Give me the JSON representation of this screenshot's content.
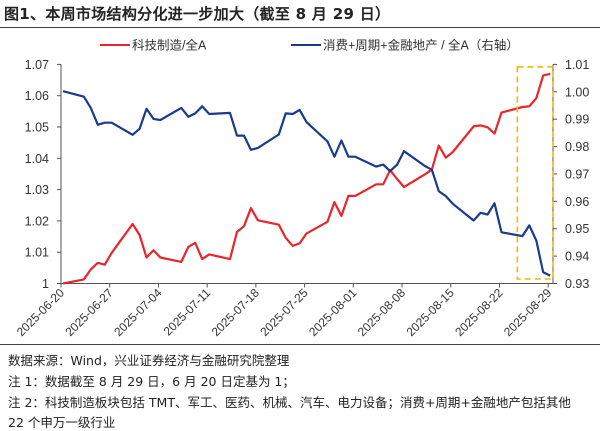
{
  "title": "图1、本周市场结构分化进一步加大（截至 8 月 29 日）",
  "footer": {
    "source": "数据来源：Wind，兴业证券经济与金融研究院整理",
    "note1": "注 1：数据截至 8 月 29 日，6 月 20 日定基为 1；",
    "note2_line1": "注 2：科技制造板块包括 TMT、军工、医药、机械、汽车、电力设备；消费+周期+金融地产包括其他",
    "note2_line2": "22 个申万一级行业"
  },
  "chart_data": {
    "type": "line",
    "title": "图1、本周市场结构分化进一步加大（截至 8 月 29 日）",
    "legend_position": "top",
    "grid": false,
    "left_axis": {
      "ylim": [
        1.0,
        1.07
      ],
      "ticks": [
        "1.07",
        "1.06",
        "1.05",
        "1.04",
        "1.03",
        "1.02",
        "1.01",
        "1"
      ]
    },
    "right_axis": {
      "ylim": [
        0.93,
        1.01
      ],
      "ticks": [
        "1.01",
        "1.00",
        "0.99",
        "0.98",
        "0.97",
        "0.96",
        "0.95",
        "0.94",
        "0.93"
      ]
    },
    "x_ticks": [
      "2025-06-20",
      "2025-06-27",
      "2025-07-04",
      "2025-07-11",
      "2025-07-18",
      "2025-07-25",
      "2025-08-01",
      "2025-08-08",
      "2025-08-15",
      "2025-08-22",
      "2025-08-29"
    ],
    "highlight": {
      "from": "2025-08-25",
      "to": "2025-08-29",
      "color": "#F5B800",
      "style": "dashed"
    },
    "dates": [
      "2025-06-20",
      "2025-06-23",
      "2025-06-24",
      "2025-06-25",
      "2025-06-26",
      "2025-06-27",
      "2025-06-30",
      "2025-07-01",
      "2025-07-02",
      "2025-07-03",
      "2025-07-04",
      "2025-07-07",
      "2025-07-08",
      "2025-07-09",
      "2025-07-10",
      "2025-07-11",
      "2025-07-14",
      "2025-07-15",
      "2025-07-16",
      "2025-07-17",
      "2025-07-18",
      "2025-07-21",
      "2025-07-22",
      "2025-07-23",
      "2025-07-24",
      "2025-07-25",
      "2025-07-28",
      "2025-07-29",
      "2025-07-30",
      "2025-07-31",
      "2025-08-01",
      "2025-08-04",
      "2025-08-05",
      "2025-08-06",
      "2025-08-07",
      "2025-08-08",
      "2025-08-11",
      "2025-08-12",
      "2025-08-13",
      "2025-08-14",
      "2025-08-15",
      "2025-08-18",
      "2025-08-19",
      "2025-08-20",
      "2025-08-21",
      "2025-08-22",
      "2025-08-25",
      "2025-08-26",
      "2025-08-27",
      "2025-08-28",
      "2025-08-29"
    ],
    "series": [
      {
        "name": "科技制造/全A",
        "axis": "left",
        "color": "#E8262B",
        "values": [
          1.0,
          1.0013,
          1.0045,
          1.0066,
          1.006,
          1.0098,
          1.019,
          1.0155,
          1.0083,
          1.0106,
          1.0083,
          1.0069,
          1.0117,
          1.013,
          1.0078,
          1.0093,
          1.0078,
          1.0165,
          1.0183,
          1.0241,
          1.0202,
          1.0188,
          1.0146,
          1.012,
          1.0128,
          1.016,
          1.0197,
          1.026,
          1.0216,
          1.028,
          1.028,
          1.0317,
          1.0317,
          1.0362,
          1.0334,
          1.0308,
          1.0349,
          1.0364,
          1.0441,
          1.0402,
          1.042,
          1.0502,
          1.0505,
          1.0499,
          1.0479,
          1.0546,
          1.0564,
          1.0566,
          1.0592,
          1.0665,
          1.067
        ]
      },
      {
        "name": "消费+周期+金融地产 / 全A（右轴）",
        "axis": "right",
        "color": "#1A3A8F",
        "values": [
          1.0002,
          0.9982,
          0.9941,
          0.988,
          0.9887,
          0.9887,
          0.9843,
          0.9865,
          0.9938,
          0.9901,
          0.9897,
          0.9941,
          0.9909,
          0.9921,
          0.9947,
          0.9919,
          0.9923,
          0.984,
          0.984,
          0.9788,
          0.9795,
          0.9844,
          0.9921,
          0.9919,
          0.9934,
          0.9889,
          0.9819,
          0.9763,
          0.9822,
          0.9763,
          0.9763,
          0.9727,
          0.9734,
          0.971,
          0.9734,
          0.9783,
          0.9729,
          0.9715,
          0.9637,
          0.9619,
          0.9591,
          0.953,
          0.9558,
          0.9552,
          0.9593,
          0.9487,
          0.9473,
          0.9512,
          0.9457,
          0.9341,
          0.9329
        ]
      }
    ]
  }
}
